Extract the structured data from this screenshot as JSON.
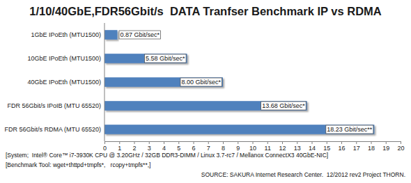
{
  "chart_data": {
    "type": "bar",
    "orientation": "horizontal",
    "title": "1/10/40GbE,FDR56Gbit/s  DATA Tranfser Benchmark IP vs RDMA",
    "categories": [
      "1GbE IPoEth (MTU1500)",
      "10GbE IPoEth (MTU1500)",
      "40GbE IPoEth (MTU1500)",
      "FDR 56Gbit/s IPoIB (MTU 65520)",
      "FDR 56Gbit/s RDMA (MTU 65520)"
    ],
    "values": [
      0.87,
      5.58,
      8.0,
      13.68,
      18.23
    ],
    "value_labels": [
      "0.87 Gbit/sec*",
      "5.58 Gbit/sec*",
      "8.00 Gbit/sec*",
      "13.68 Gbit/sec*",
      "18.23 Gbit/sec**"
    ],
    "data_labels": true,
    "color": "#4f81bd",
    "xlim": [
      0,
      20
    ],
    "xticks": [
      0,
      1,
      2,
      3,
      4,
      5,
      6,
      7,
      8,
      9,
      10,
      11,
      12,
      13,
      14,
      15,
      16,
      17,
      18,
      19,
      20
    ],
    "grid": false,
    "annotations": [
      "[System;  Intel® Core™ i7-3930K CPU @ 3.20GHz / 32GB DDR3-DIMM / Linux 3.7-rc7 / Mellanox ConnectX3 40GbE-NIC]",
      "[Benchmark Tool: wget+thttpd+tmpfs*,   rcopy+tmpfs**,]",
      "SOURCE: SAKURA Internet Research Center.  12/2012 rev2 Project THORN."
    ]
  }
}
